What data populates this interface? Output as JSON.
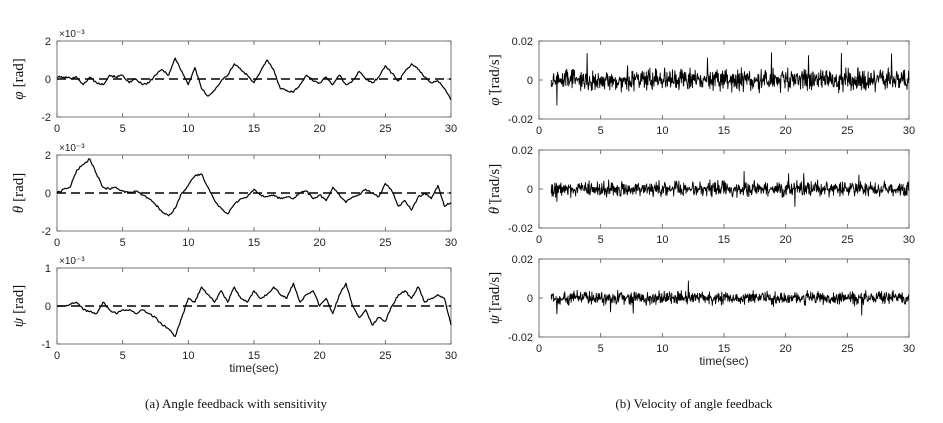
{
  "chart_data": [
    {
      "type": "line",
      "panel": "left-1",
      "ylabel_symbol": "φ",
      "ylabel_dot": false,
      "ylabel_unit": "[rad]",
      "exponent_label": "×10⁻³",
      "xlim": [
        0,
        30
      ],
      "ylim": [
        -2,
        2
      ],
      "xticks": [
        0,
        5,
        10,
        15,
        20,
        25,
        30
      ],
      "yticks": [
        -2,
        0,
        2
      ],
      "xtick_labels": [
        "0",
        "5",
        "10",
        "15",
        "20",
        "25",
        "30"
      ],
      "ytick_labels": [
        "-2",
        "0",
        "2"
      ],
      "xlabel": "",
      "reference_line": 0,
      "series": [
        {
          "style": "solid",
          "x": [
            0,
            0.5,
            1,
            1.5,
            2,
            2.5,
            3,
            3.5,
            4,
            4.5,
            5,
            5.5,
            6,
            6.5,
            7,
            7.5,
            8,
            8.5,
            9,
            9.5,
            10,
            10.5,
            11,
            11.5,
            12,
            12.5,
            13,
            13.5,
            14,
            14.5,
            15,
            15.5,
            16,
            16.5,
            17,
            17.5,
            18,
            18.5,
            19,
            19.5,
            20,
            20.5,
            21,
            21.5,
            22,
            22.5,
            23,
            23.5,
            24,
            24.5,
            25,
            25.5,
            26,
            26.5,
            27,
            27.5,
            28,
            28.5,
            29,
            29.5,
            30
          ],
          "y": [
            0.1,
            0.1,
            0.05,
            0.1,
            -0.3,
            0.1,
            -0.2,
            -0.3,
            0.2,
            0.1,
            0.2,
            -0.2,
            0.0,
            -0.3,
            -0.2,
            0.2,
            0.5,
            0.2,
            1.1,
            0.4,
            -0.3,
            0.6,
            -0.5,
            -0.9,
            -0.6,
            -0.1,
            0.2,
            0.8,
            0.5,
            0.2,
            -0.2,
            0.4,
            1.0,
            0.5,
            -0.5,
            -0.6,
            -0.7,
            -0.3,
            0.2,
            -0.1,
            -0.2,
            0.1,
            -0.3,
            0.2,
            -0.3,
            -0.1,
            0.4,
            0.0,
            -0.2,
            0.1,
            0.7,
            0.3,
            -0.1,
            0.4,
            0.8,
            0.5,
            0.1,
            -0.2,
            -0.1,
            -0.5,
            -1.1
          ]
        }
      ]
    },
    {
      "type": "line",
      "panel": "left-2",
      "ylabel_symbol": "θ",
      "ylabel_dot": false,
      "ylabel_unit": "[rad]",
      "exponent_label": "×10⁻³",
      "xlim": [
        0,
        30
      ],
      "ylim": [
        -2,
        2
      ],
      "xticks": [
        0,
        5,
        10,
        15,
        20,
        25,
        30
      ],
      "yticks": [
        -2,
        0,
        2
      ],
      "xtick_labels": [
        "0",
        "5",
        "10",
        "15",
        "20",
        "25",
        "30"
      ],
      "ytick_labels": [
        "-2",
        "0",
        "2"
      ],
      "xlabel": "",
      "reference_line": 0,
      "series": [
        {
          "style": "solid",
          "x": [
            0,
            0.5,
            1,
            1.5,
            2,
            2.5,
            3,
            3.5,
            4,
            4.5,
            5,
            5.5,
            6,
            6.5,
            7,
            7.5,
            8,
            8.5,
            9,
            9.5,
            10,
            10.5,
            11,
            11.5,
            12,
            12.5,
            13,
            13.5,
            14,
            14.5,
            15,
            15.5,
            16,
            16.5,
            17,
            17.5,
            18,
            18.5,
            19,
            19.5,
            20,
            20.5,
            21,
            21.5,
            22,
            22.5,
            23,
            23.5,
            24,
            24.5,
            25,
            25.5,
            26,
            26.5,
            27,
            27.5,
            28,
            28.5,
            29,
            29.5,
            30
          ],
          "y": [
            0.0,
            0.2,
            0.3,
            1.2,
            1.5,
            1.8,
            1.0,
            0.3,
            0.2,
            0.3,
            0.1,
            0.0,
            0.1,
            -0.1,
            -0.3,
            -0.6,
            -1.0,
            -1.2,
            -0.8,
            0.0,
            0.4,
            0.9,
            1.0,
            0.3,
            -0.4,
            -0.8,
            -1.1,
            -0.6,
            -0.3,
            -0.2,
            0.2,
            -0.1,
            -0.2,
            -0.1,
            -0.3,
            -0.2,
            -0.3,
            0.0,
            0.1,
            -0.3,
            -0.1,
            -0.4,
            0.3,
            -0.1,
            -0.5,
            -0.2,
            -0.1,
            0.2,
            0.0,
            -0.2,
            0.5,
            0.1,
            -0.7,
            -0.4,
            -0.9,
            -0.2,
            0.0,
            -0.3,
            0.4,
            -0.7,
            -0.5
          ]
        }
      ]
    },
    {
      "type": "line",
      "panel": "left-3",
      "ylabel_symbol": "ψ",
      "ylabel_dot": false,
      "ylabel_unit": "[rad]",
      "exponent_label": "×10⁻³",
      "xlim": [
        0,
        30
      ],
      "ylim": [
        -1,
        1
      ],
      "xticks": [
        0,
        5,
        10,
        15,
        20,
        25,
        30
      ],
      "yticks": [
        -1,
        0,
        1
      ],
      "xtick_labels": [
        "0",
        "5",
        "10",
        "15",
        "20",
        "25",
        "30"
      ],
      "ytick_labels": [
        "-1",
        "0",
        "1"
      ],
      "xlabel": "time(sec)",
      "reference_line": 0,
      "series": [
        {
          "style": "solid",
          "x": [
            0,
            0.5,
            1,
            1.5,
            2,
            2.5,
            3,
            3.5,
            4,
            4.5,
            5,
            5.5,
            6,
            6.5,
            7,
            7.5,
            8,
            8.5,
            9,
            9.5,
            10,
            10.5,
            11,
            11.5,
            12,
            12.5,
            13,
            13.5,
            14,
            14.5,
            15,
            15.5,
            16,
            16.5,
            17,
            17.5,
            18,
            18.5,
            19,
            19.5,
            20,
            20.5,
            21,
            21.5,
            22,
            22.5,
            23,
            23.5,
            24,
            24.5,
            25,
            25.5,
            26,
            26.5,
            27,
            27.5,
            28,
            28.5,
            29,
            29.5,
            30
          ],
          "y": [
            0.0,
            0.0,
            0.05,
            0.1,
            -0.1,
            -0.15,
            -0.2,
            0.1,
            -0.1,
            -0.2,
            -0.1,
            -0.1,
            -0.2,
            -0.1,
            -0.2,
            -0.3,
            -0.5,
            -0.6,
            -0.8,
            -0.3,
            0.2,
            0.1,
            0.5,
            0.3,
            0.1,
            0.4,
            0.1,
            0.5,
            0.2,
            0.1,
            0.4,
            0.2,
            0.3,
            0.5,
            0.3,
            0.2,
            0.6,
            0.1,
            0.3,
            0.4,
            0.0,
            0.2,
            -0.2,
            0.3,
            0.6,
            0.0,
            -0.3,
            -0.1,
            -0.5,
            -0.3,
            -0.4,
            0.0,
            0.3,
            0.4,
            0.2,
            0.5,
            0.1,
            0.2,
            0.3,
            0.2,
            -0.5
          ]
        }
      ]
    },
    {
      "type": "line",
      "panel": "right-1",
      "ylabel_symbol": "φ",
      "ylabel_dot": true,
      "ylabel_unit": "[rad/s]",
      "xlim": [
        0,
        30
      ],
      "ylim": [
        -0.02,
        0.02
      ],
      "xticks": [
        0,
        5,
        10,
        15,
        20,
        25,
        30
      ],
      "yticks": [
        -0.02,
        0,
        0.02
      ],
      "xtick_labels": [
        "0",
        "5",
        "10",
        "15",
        "20",
        "25",
        "30"
      ],
      "ytick_labels": [
        "-0.02",
        "0",
        "0.02"
      ],
      "xlabel": "",
      "series": [
        {
          "style": "noise",
          "x_start": 1,
          "x_end": 30,
          "amplitude": 0.005,
          "peak": 0.014
        }
      ]
    },
    {
      "type": "line",
      "panel": "right-2",
      "ylabel_symbol": "θ",
      "ylabel_dot": true,
      "ylabel_unit": "[rad/s]",
      "xlim": [
        0,
        30
      ],
      "ylim": [
        -0.02,
        0.02
      ],
      "xticks": [
        0,
        5,
        10,
        15,
        20,
        25,
        30
      ],
      "yticks": [
        -0.02,
        0,
        0.02
      ],
      "xtick_labels": [
        "0",
        "5",
        "10",
        "15",
        "20",
        "25",
        "30"
      ],
      "ytick_labels": [
        "-0.02",
        "0",
        "0.02"
      ],
      "xlabel": "",
      "series": [
        {
          "style": "noise",
          "x_start": 1,
          "x_end": 30,
          "amplitude": 0.0035,
          "peak": 0.009
        }
      ]
    },
    {
      "type": "line",
      "panel": "right-3",
      "ylabel_symbol": "ψ",
      "ylabel_dot": true,
      "ylabel_unit": "[rad/s]",
      "xlim": [
        0,
        30
      ],
      "ylim": [
        -0.02,
        0.02
      ],
      "xticks": [
        0,
        5,
        10,
        15,
        20,
        25,
        30
      ],
      "yticks": [
        -0.02,
        0,
        0.02
      ],
      "xtick_labels": [
        "0",
        "5",
        "10",
        "15",
        "20",
        "25",
        "30"
      ],
      "ytick_labels": [
        "-0.02",
        "0",
        "0.02"
      ],
      "xlabel": "time(sec)",
      "series": [
        {
          "style": "noise",
          "x_start": 1,
          "x_end": 30,
          "amplitude": 0.003,
          "peak": 0.01
        }
      ]
    }
  ],
  "captions": {
    "left": "(a) Angle feedback with sensitivity",
    "right": "(b) Velocity of angle feedback"
  }
}
